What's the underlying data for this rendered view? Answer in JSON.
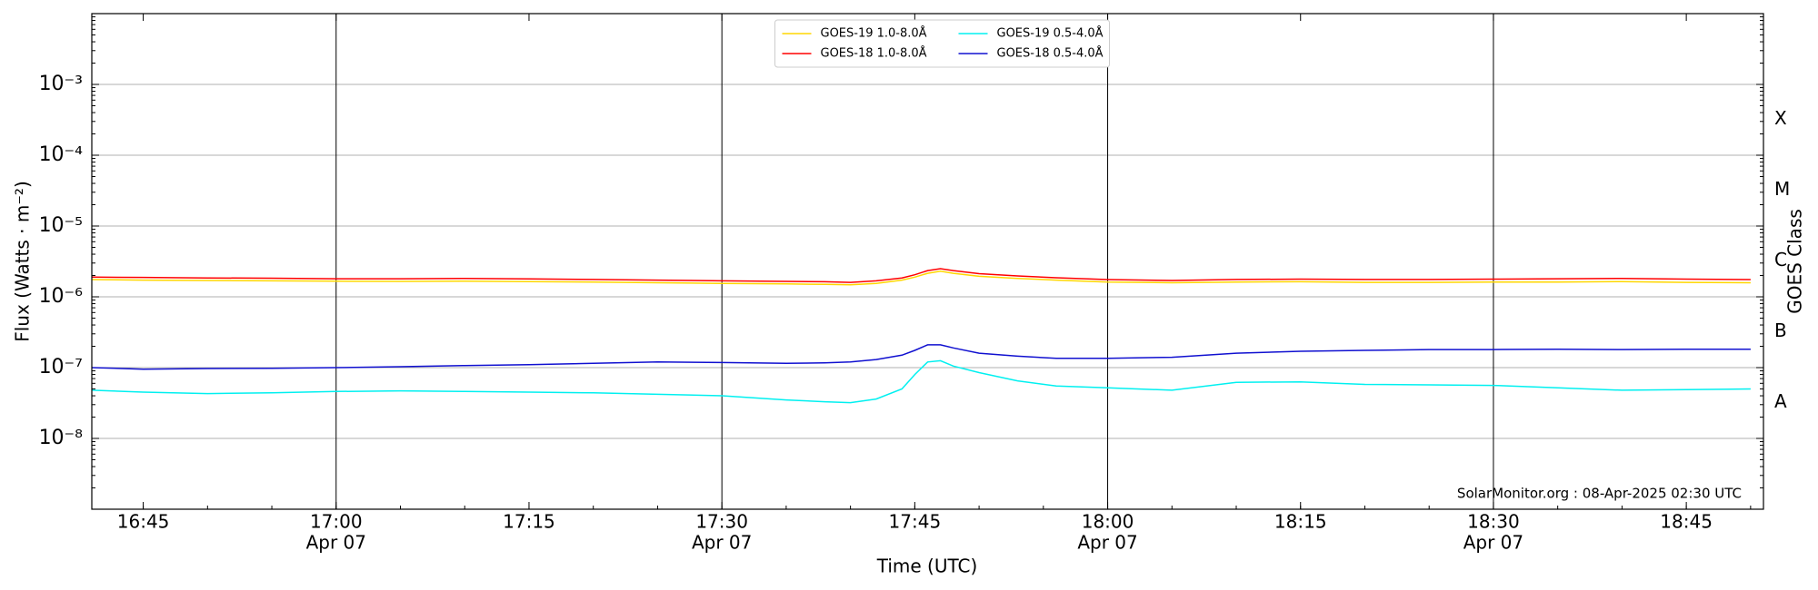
{
  "chart_data": {
    "type": "line",
    "xlabel": "Time (UTC)",
    "ylabel": "Flux (Watts · m⁻²)",
    "y2label": "GOES Class",
    "annotation": "SolarMonitor.org : 08-Apr-2025 02:30 UTC",
    "log_y": true,
    "grid": true,
    "legend": "upper center",
    "x": [
      "16:41",
      "16:45",
      "16:50",
      "16:55",
      "17:00",
      "17:05",
      "17:10",
      "17:15",
      "17:20",
      "17:25",
      "17:30",
      "17:35",
      "17:38",
      "17:40",
      "17:42",
      "17:44",
      "17:45",
      "17:46",
      "17:47",
      "17:48",
      "17:50",
      "17:53",
      "17:56",
      "18:00",
      "18:05",
      "18:10",
      "18:15",
      "18:20",
      "18:25",
      "18:30",
      "18:35",
      "18:40",
      "18:45",
      "18:50"
    ],
    "xlim": [
      "16:41",
      "18:51"
    ],
    "xticks": [
      {
        "value": "16:45",
        "label": "16:45"
      },
      {
        "value": "17:00",
        "label": "17:00",
        "date": "Apr 07"
      },
      {
        "value": "17:15",
        "label": "17:15"
      },
      {
        "value": "17:30",
        "label": "17:30",
        "date": "Apr 07"
      },
      {
        "value": "17:45",
        "label": "17:45"
      },
      {
        "value": "18:00",
        "label": "18:00",
        "date": "Apr 07"
      },
      {
        "value": "18:15",
        "label": "18:15"
      },
      {
        "value": "18:30",
        "label": "18:30",
        "date": "Apr 07"
      },
      {
        "value": "18:45",
        "label": "18:45"
      }
    ],
    "ylim": [
      1e-09,
      0.01
    ],
    "yticks": [
      {
        "value": 1e-08,
        "label": "10⁻⁸"
      },
      {
        "value": 1e-07,
        "label": "10⁻⁷"
      },
      {
        "value": 1e-06,
        "label": "10⁻⁶"
      },
      {
        "value": 1e-05,
        "label": "10⁻⁵"
      },
      {
        "value": 0.0001,
        "label": "10⁻⁴"
      },
      {
        "value": 0.001,
        "label": "10⁻³"
      }
    ],
    "class_ticks": [
      {
        "value": 3.2e-08,
        "label": "A"
      },
      {
        "value": 3.2e-07,
        "label": "B"
      },
      {
        "value": 3.2e-06,
        "label": "C"
      },
      {
        "value": 3.2e-05,
        "label": "M"
      },
      {
        "value": 0.00032,
        "label": "X"
      }
    ],
    "series": [
      {
        "name": "GOES-19 1.0-8.0Å",
        "color": "#ffd700",
        "values": [
          1.75e-06,
          1.72e-06,
          1.7e-06,
          1.68e-06,
          1.66e-06,
          1.65e-06,
          1.66e-06,
          1.64e-06,
          1.62e-06,
          1.58e-06,
          1.55e-06,
          1.52e-06,
          1.5e-06,
          1.48e-06,
          1.55e-06,
          1.72e-06,
          1.9e-06,
          2.15e-06,
          2.3e-06,
          2.15e-06,
          1.95e-06,
          1.82e-06,
          1.72e-06,
          1.62e-06,
          1.58e-06,
          1.62e-06,
          1.63e-06,
          1.6e-06,
          1.6e-06,
          1.62e-06,
          1.62e-06,
          1.64e-06,
          1.6e-06,
          1.58e-06
        ]
      },
      {
        "name": "GOES-18 1.0-8.0Å",
        "color": "#ff0000",
        "values": [
          1.9e-06,
          1.88e-06,
          1.85e-06,
          1.83e-06,
          1.8e-06,
          1.8e-06,
          1.82e-06,
          1.79e-06,
          1.76e-06,
          1.72e-06,
          1.68e-06,
          1.65e-06,
          1.63e-06,
          1.6e-06,
          1.68e-06,
          1.85e-06,
          2.05e-06,
          2.35e-06,
          2.5e-06,
          2.35e-06,
          2.12e-06,
          1.97e-06,
          1.86e-06,
          1.75e-06,
          1.7e-06,
          1.76e-06,
          1.78e-06,
          1.76e-06,
          1.76e-06,
          1.78e-06,
          1.8e-06,
          1.82e-06,
          1.78e-06,
          1.75e-06
        ]
      },
      {
        "name": "GOES-19 0.5-4.0Å",
        "color": "#00f0f0",
        "values": [
          4.8e-08,
          4.5e-08,
          4.3e-08,
          4.4e-08,
          4.6e-08,
          4.7e-08,
          4.6e-08,
          4.5e-08,
          4.4e-08,
          4.2e-08,
          4e-08,
          3.5e-08,
          3.3e-08,
          3.2e-08,
          3.6e-08,
          5e-08,
          8e-08,
          1.2e-07,
          1.25e-07,
          1.05e-07,
          8.5e-08,
          6.5e-08,
          5.5e-08,
          5.2e-08,
          4.8e-08,
          6.2e-08,
          6.3e-08,
          5.8e-08,
          5.7e-08,
          5.6e-08,
          5.2e-08,
          4.8e-08,
          4.9e-08,
          5e-08
        ]
      },
      {
        "name": "GOES-18 0.5-4.0Å",
        "color": "#1010d0",
        "values": [
          1e-07,
          9.5e-08,
          9.7e-08,
          9.8e-08,
          1e-07,
          1.03e-07,
          1.07e-07,
          1.1e-07,
          1.15e-07,
          1.2e-07,
          1.18e-07,
          1.15e-07,
          1.17e-07,
          1.2e-07,
          1.3e-07,
          1.5e-07,
          1.75e-07,
          2.1e-07,
          2.1e-07,
          1.9e-07,
          1.6e-07,
          1.45e-07,
          1.35e-07,
          1.35e-07,
          1.4e-07,
          1.6e-07,
          1.7e-07,
          1.75e-07,
          1.8e-07,
          1.8e-07,
          1.82e-07,
          1.8e-07,
          1.82e-07,
          1.82e-07
        ]
      }
    ]
  }
}
